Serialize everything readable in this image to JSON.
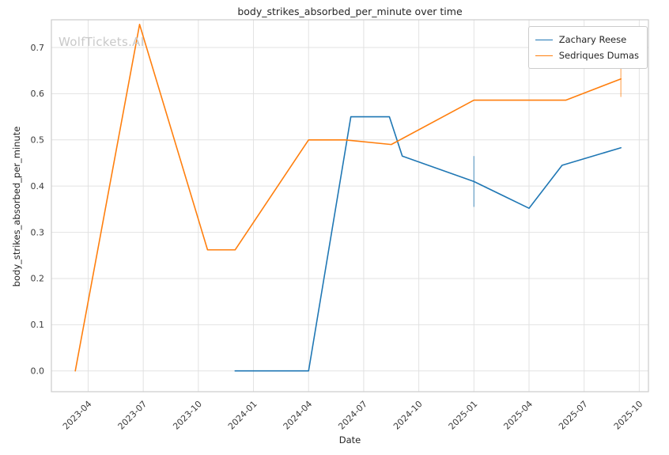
{
  "watermark": "WolfTickets.AI",
  "chart_data": {
    "type": "line",
    "title": "body_strikes_absorbed_per_minute over time",
    "xlabel": "Date",
    "ylabel": "body_strikes_absorbed_per_minute",
    "x_unit": "months since 2023-01",
    "xlim": [
      1.0,
      33.5
    ],
    "ylim": [
      -0.045,
      0.76
    ],
    "grid": true,
    "legend_position": "upper right",
    "x_ticks": [
      {
        "pos": 3,
        "label": "2023-04"
      },
      {
        "pos": 6,
        "label": "2023-07"
      },
      {
        "pos": 9,
        "label": "2023-10"
      },
      {
        "pos": 12,
        "label": "2024-01"
      },
      {
        "pos": 15,
        "label": "2024-04"
      },
      {
        "pos": 18,
        "label": "2024-07"
      },
      {
        "pos": 21,
        "label": "2024-10"
      },
      {
        "pos": 24,
        "label": "2025-01"
      },
      {
        "pos": 27,
        "label": "2025-04"
      },
      {
        "pos": 30,
        "label": "2025-07"
      },
      {
        "pos": 33,
        "label": "2025-10"
      }
    ],
    "y_ticks": [
      {
        "pos": 0.0,
        "label": "0.0"
      },
      {
        "pos": 0.1,
        "label": "0.1"
      },
      {
        "pos": 0.2,
        "label": "0.2"
      },
      {
        "pos": 0.3,
        "label": "0.3"
      },
      {
        "pos": 0.4,
        "label": "0.4"
      },
      {
        "pos": 0.5,
        "label": "0.5"
      },
      {
        "pos": 0.6,
        "label": "0.6"
      },
      {
        "pos": 0.7,
        "label": "0.7"
      }
    ],
    "series": [
      {
        "name": "Zachary Reese",
        "color": "#1f77b4",
        "points": [
          [
            11.0,
            0.0
          ],
          [
            15.0,
            0.0
          ],
          [
            17.3,
            0.55
          ],
          [
            19.4,
            0.55
          ],
          [
            20.1,
            0.465
          ],
          [
            24.0,
            0.41
          ],
          [
            27.0,
            0.352
          ],
          [
            28.8,
            0.445
          ],
          [
            32.0,
            0.483
          ]
        ],
        "error_bars": [
          {
            "x": 24.0,
            "y_low": 0.355,
            "y_high": 0.465
          }
        ]
      },
      {
        "name": "Sedriques Dumas",
        "color": "#ff7f0e",
        "points": [
          [
            2.3,
            0.0
          ],
          [
            5.8,
            0.75
          ],
          [
            9.5,
            0.262
          ],
          [
            11.0,
            0.262
          ],
          [
            15.0,
            0.5
          ],
          [
            17.0,
            0.5
          ],
          [
            19.5,
            0.49
          ],
          [
            24.0,
            0.586
          ],
          [
            29.0,
            0.586
          ],
          [
            32.0,
            0.632
          ]
        ],
        "error_bars": [
          {
            "x": 32.0,
            "y_low": 0.593,
            "y_high": 0.672
          }
        ]
      }
    ]
  }
}
